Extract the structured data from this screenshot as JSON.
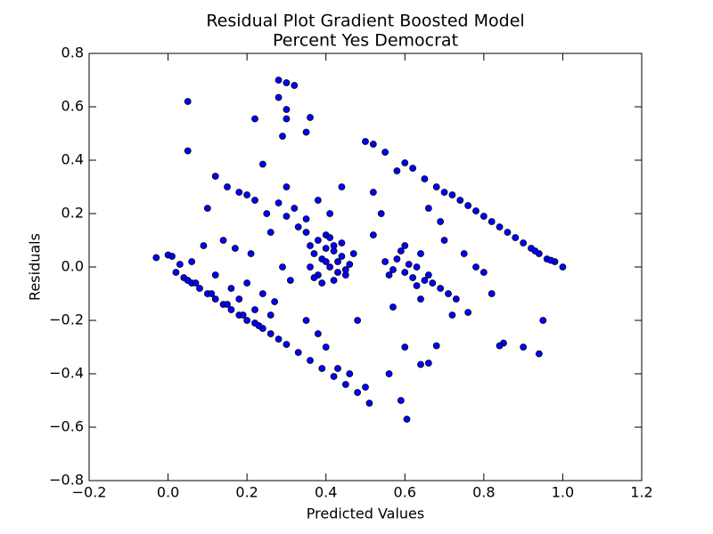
{
  "chart_data": {
    "type": "scatter",
    "title": "Residual Plot Gradient Boosted Model",
    "subtitle": "Percent Yes Democrat",
    "x_label": "Predicted Values",
    "y_label": "Residuals",
    "color": "#0000ff",
    "grid": false,
    "xlim": [
      -0.2,
      1.2
    ],
    "ylim": [
      -0.8,
      0.8
    ],
    "xticks": [
      {
        "value": -0.2,
        "label": "−0.2"
      },
      {
        "value": 0,
        "label": "0.0"
      },
      0.2,
      0.4,
      0.6,
      0.8,
      {
        "value": 1,
        "label": "1.0"
      },
      1.2
    ],
    "yticks": [
      {
        "value": -0.8,
        "label": "−0.8"
      },
      {
        "value": -0.6,
        "label": "−0.6"
      },
      {
        "value": -0.4,
        "label": "−0.4"
      },
      {
        "value": -0.2,
        "label": "−0.2"
      },
      {
        "value": 0,
        "label": "0.0"
      },
      0.2,
      0.4,
      0.6,
      0.8
    ],
    "x": [
      0.02,
      0.04,
      0.05,
      0.06,
      0.08,
      0.1,
      0.12,
      0.14,
      0.16,
      0.18,
      0.2,
      0.22,
      0.24,
      0.26,
      0.28,
      0.3,
      0.33,
      0.36,
      0.39,
      0.42,
      0.45,
      0.48,
      0.07,
      0.11,
      0.15,
      0.19,
      0.23,
      0.5,
      0.52,
      0.58,
      0.6,
      0.62,
      0.65,
      0.68,
      0.7,
      0.72,
      0.74,
      0.76,
      0.78,
      0.8,
      0.82,
      0.84,
      0.86,
      0.88,
      0.9,
      0.92,
      0.94,
      0.96,
      0.98,
      1.0,
      0.97,
      0.93,
      0.55,
      0.05,
      0.05,
      0.28,
      0.3,
      0.32,
      0.28,
      0.3,
      0.3,
      0.22,
      0.35,
      0.36,
      0.29,
      0.24,
      0.605,
      0.59,
      0.51,
      0.56,
      0.95,
      0.94,
      0.9,
      0.85,
      0.84,
      0.66,
      0.64,
      0.68,
      -0.03,
      0.0,
      0.01,
      0.36,
      0.37,
      0.38,
      0.39,
      0.4,
      0.41,
      0.42,
      0.43,
      0.44,
      0.45,
      0.46,
      0.38,
      0.4,
      0.42,
      0.44,
      0.36,
      0.39,
      0.41,
      0.43,
      0.47,
      0.35,
      0.37,
      0.4,
      0.42,
      0.45,
      0.55,
      0.57,
      0.58,
      0.6,
      0.61,
      0.62,
      0.63,
      0.65,
      0.67,
      0.69,
      0.71,
      0.73,
      0.59,
      0.64,
      0.66,
      0.56,
      0.6,
      0.63,
      0.1,
      0.12,
      0.15,
      0.18,
      0.2,
      0.22,
      0.25,
      0.28,
      0.3,
      0.32,
      0.14,
      0.17,
      0.21,
      0.26,
      0.29,
      0.33,
      0.12,
      0.16,
      0.2,
      0.24,
      0.27,
      0.31,
      0.35,
      0.38,
      0.4,
      0.43,
      0.46,
      0.5,
      0.48,
      0.52,
      0.54,
      0.7,
      0.75,
      0.78,
      0.8,
      0.72,
      0.76,
      0.82,
      0.66,
      0.69,
      0.64,
      0.6,
      0.57,
      0.52,
      0.44,
      0.41,
      0.38,
      0.35,
      0.3,
      0.26,
      0.22,
      0.18,
      0.09,
      0.06,
      0.03
    ],
    "values": [
      -0.02,
      -0.04,
      -0.05,
      -0.06,
      -0.08,
      -0.1,
      -0.12,
      -0.14,
      -0.16,
      -0.18,
      -0.2,
      -0.21,
      -0.23,
      -0.25,
      -0.27,
      -0.29,
      -0.32,
      -0.35,
      -0.38,
      -0.41,
      -0.44,
      -0.47,
      -0.06,
      -0.1,
      -0.14,
      -0.18,
      -0.22,
      0.47,
      0.46,
      0.36,
      0.39,
      0.37,
      0.33,
      0.3,
      0.28,
      0.27,
      0.25,
      0.23,
      0.21,
      0.19,
      0.17,
      0.15,
      0.13,
      0.11,
      0.09,
      0.07,
      0.05,
      0.03,
      0.02,
      0.0,
      0.025,
      0.06,
      0.43,
      0.62,
      0.435,
      0.7,
      0.69,
      0.68,
      0.635,
      0.59,
      0.555,
      0.555,
      0.505,
      0.56,
      0.49,
      0.385,
      -0.57,
      -0.5,
      -0.51,
      -0.4,
      -0.2,
      -0.325,
      -0.3,
      -0.285,
      -0.295,
      -0.36,
      -0.365,
      -0.295,
      0.035,
      0.045,
      0.04,
      0.08,
      0.05,
      0.1,
      0.03,
      0.07,
      0.0,
      0.06,
      0.02,
      0.04,
      -0.01,
      0.01,
      -0.03,
      0.12,
      -0.05,
      0.09,
      0.0,
      -0.06,
      0.11,
      -0.02,
      0.05,
      0.13,
      -0.04,
      0.02,
      0.08,
      -0.03,
      0.02,
      -0.01,
      0.03,
      -0.02,
      0.01,
      -0.04,
      0.0,
      -0.05,
      -0.06,
      -0.08,
      -0.1,
      -0.12,
      0.06,
      0.05,
      -0.03,
      -0.03,
      0.08,
      -0.07,
      0.22,
      0.34,
      0.3,
      0.28,
      0.27,
      0.25,
      0.2,
      0.24,
      0.19,
      0.22,
      0.1,
      0.07,
      0.05,
      0.13,
      0.0,
      0.15,
      -0.03,
      -0.08,
      -0.06,
      -0.1,
      -0.13,
      -0.05,
      -0.2,
      -0.25,
      -0.3,
      -0.38,
      -0.4,
      -0.45,
      -0.2,
      0.12,
      0.2,
      0.1,
      0.05,
      0.0,
      -0.02,
      -0.18,
      -0.17,
      -0.1,
      0.22,
      0.17,
      -0.12,
      -0.3,
      -0.15,
      0.28,
      0.3,
      0.2,
      0.25,
      0.18,
      0.3,
      -0.18,
      -0.16,
      -0.12,
      0.08,
      0.02,
      0.01
    ]
  }
}
